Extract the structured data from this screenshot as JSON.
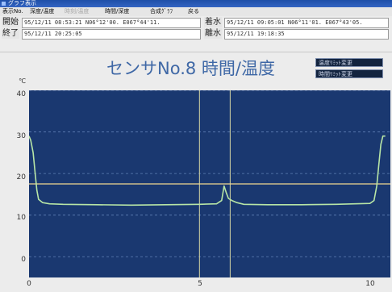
{
  "window": {
    "title": "グラフ表示"
  },
  "menu": [
    {
      "label": "表示No.",
      "enabled": true
    },
    {
      "label": "深度/温度",
      "enabled": true
    },
    {
      "label": "時刻/温度",
      "enabled": false
    },
    {
      "label": "時間/深度",
      "enabled": true
    },
    {
      "label": "合成ｸﾞﾗﾌ",
      "enabled": true
    },
    {
      "label": "戻る",
      "enabled": true
    }
  ],
  "info": {
    "start_label": "開始",
    "start_value": "95/12/11 08:53:21  N06°12'00.  E067°44'11.",
    "end_label": "終了",
    "end_value": "95/12/11 20:25:05",
    "land_label": "着水",
    "land_value": "95/12/11 09:05:01  N06°11'01.  E067°43'05.",
    "leave_label": "離水",
    "leave_value": "95/12/11 19:18:35"
  },
  "chart_title": "センサNo.8  時間/温度",
  "side_buttons": [
    "温度ﾘﾐｯﾄ変更",
    "時間ﾘﾐｯﾄ変更"
  ],
  "colors": {
    "plot_bg": "#1a3870",
    "grid": "#5f7fb5",
    "series": "#b8e6a6",
    "threshold": "#f0d890",
    "marker": "#d6d6a4",
    "title": "#3f68a6"
  },
  "chart_data": {
    "type": "line",
    "title": "センサNo.8  時間/温度",
    "ylabel": "℃",
    "xlabel": "",
    "xlim": [
      0,
      10.6
    ],
    "ylim": [
      -5,
      40
    ],
    "xticks": [
      "0",
      "5",
      "10"
    ],
    "xtick_values": [
      0,
      5,
      10
    ],
    "yticks": [
      "40",
      "30",
      "20",
      "10",
      "0"
    ],
    "ytick_values": [
      40,
      30,
      20,
      10,
      0
    ],
    "threshold": 17.5,
    "markers_x": [
      5.0,
      5.9
    ],
    "series": [
      {
        "x": [
          0.0,
          0.05,
          0.12,
          0.18,
          0.23,
          0.28,
          0.4,
          0.6,
          1.0,
          2.0,
          3.0,
          4.0,
          5.0,
          5.5,
          5.65,
          5.72,
          5.78,
          5.85,
          5.95,
          6.1,
          6.3,
          7.0,
          8.0,
          9.0,
          10.0,
          10.12,
          10.2,
          10.26,
          10.32,
          10.38,
          10.45
        ],
        "y": [
          29,
          28,
          25,
          20,
          16,
          13.8,
          13.0,
          12.7,
          12.6,
          12.5,
          12.4,
          12.5,
          12.6,
          12.7,
          13.5,
          17.0,
          15.5,
          14.0,
          13.5,
          13.0,
          12.6,
          12.5,
          12.5,
          12.6,
          12.8,
          13.5,
          17,
          22,
          27,
          29,
          29
        ]
      }
    ]
  }
}
